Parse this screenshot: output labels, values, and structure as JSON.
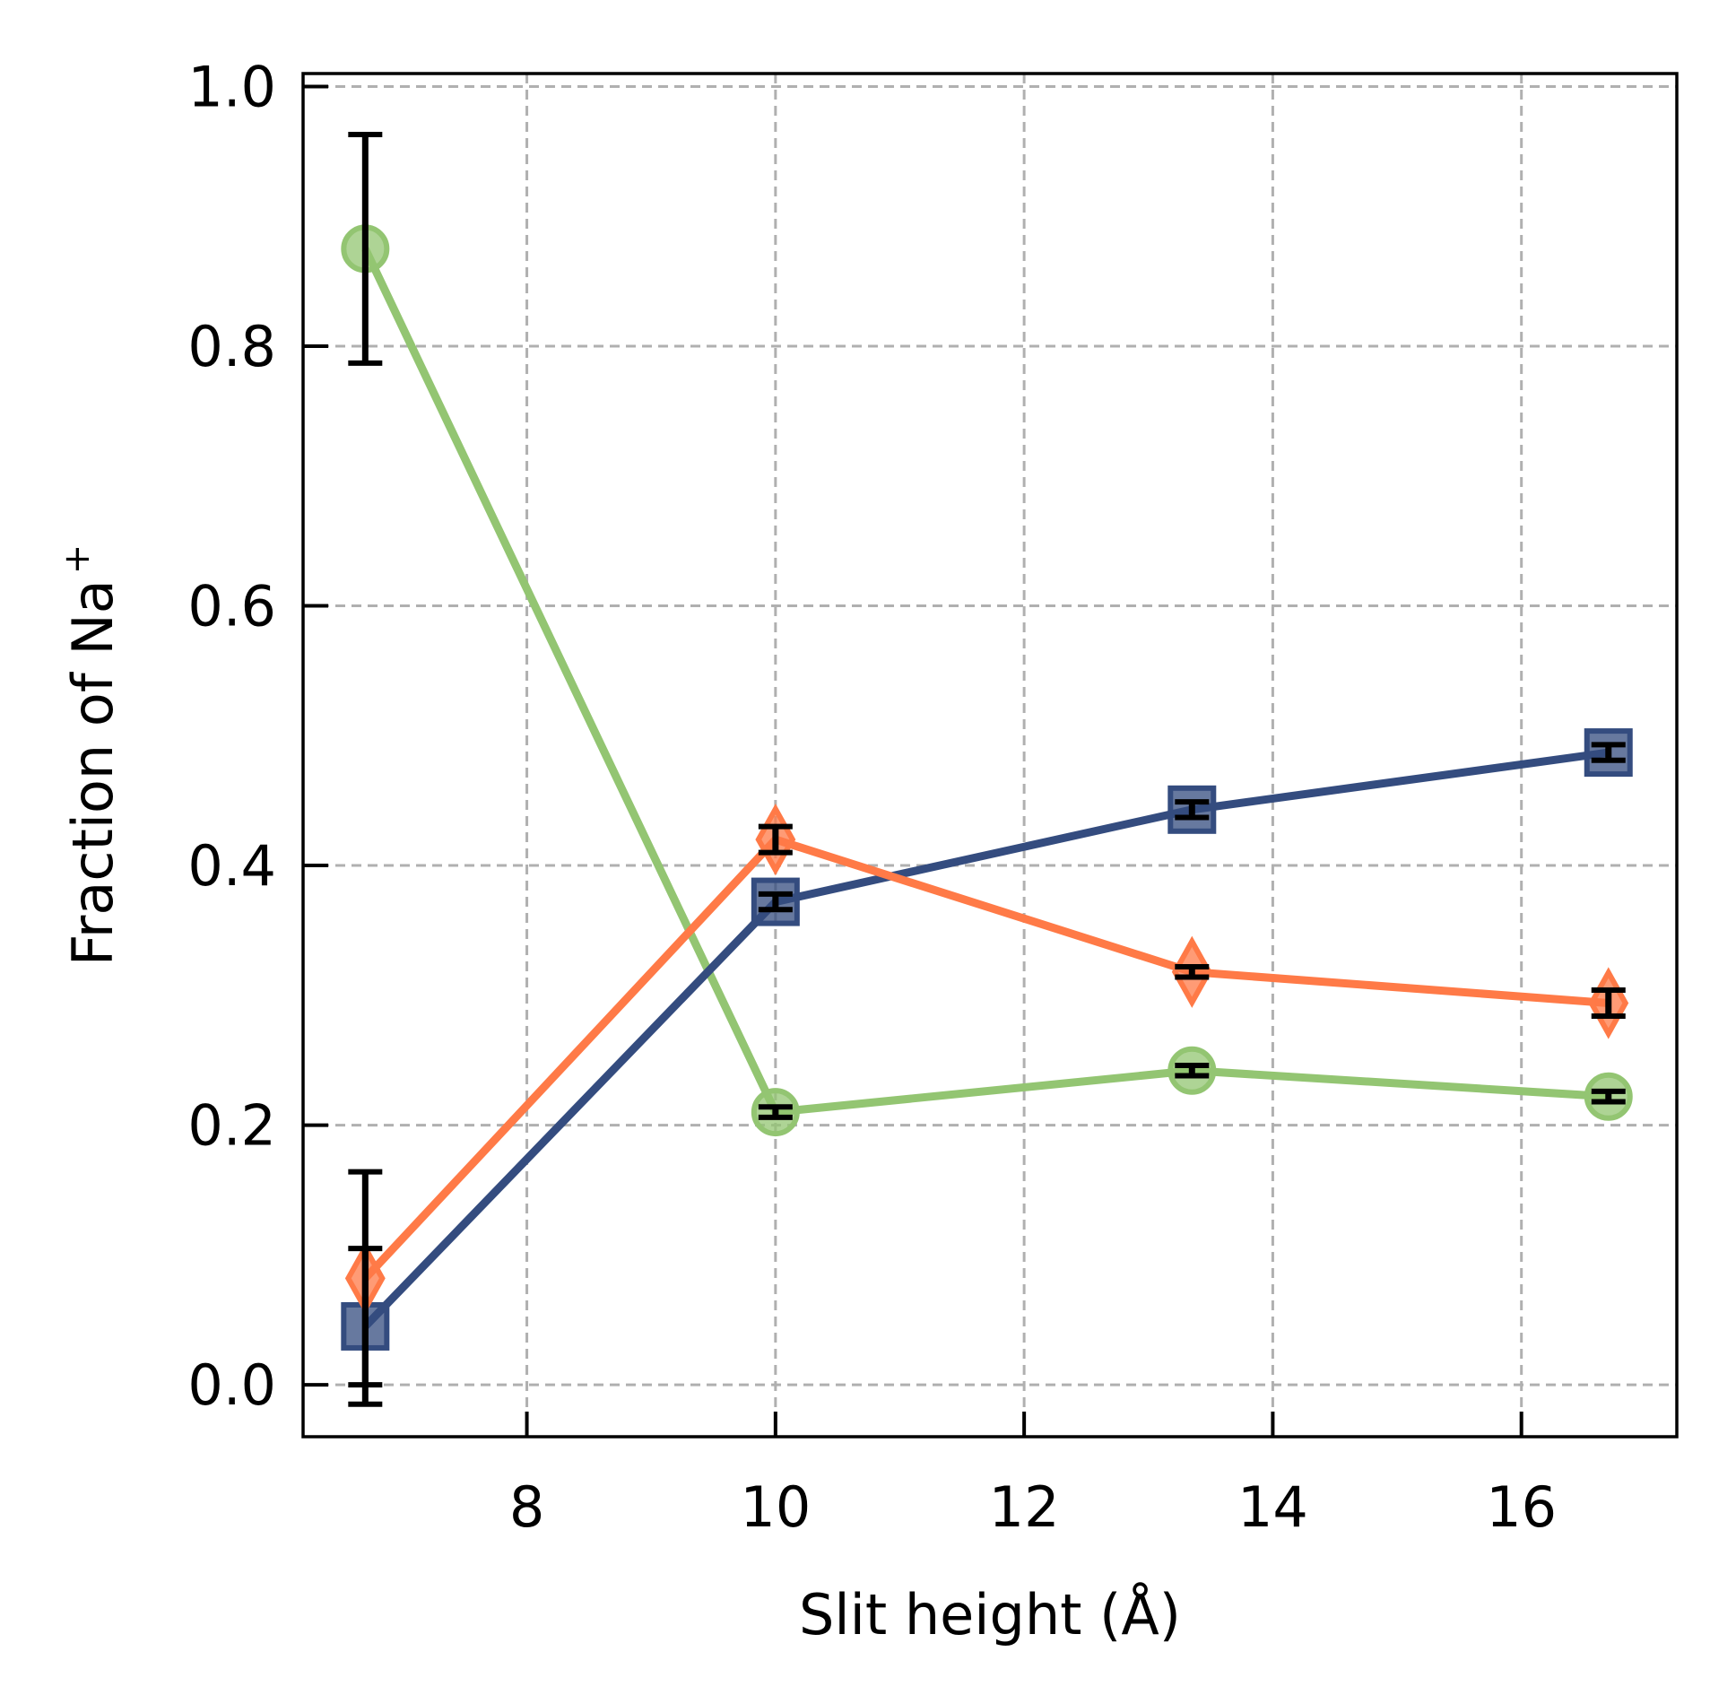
{
  "chart_data": {
    "type": "line",
    "title": "",
    "xlabel": "Slit height (Å)",
    "ylabel": "Fraction of Na",
    "ylabel_sup": "+",
    "xlim": [
      6.2,
      17.25
    ],
    "ylim": [
      -0.04,
      1.01
    ],
    "xticks": [
      8,
      10,
      12,
      14,
      16
    ],
    "yticks": [
      0.0,
      0.2,
      0.4,
      0.6,
      0.8,
      1.0
    ],
    "xtick_labels": [
      "8",
      "10",
      "12",
      "14",
      "16"
    ],
    "ytick_labels": [
      "0.0",
      "0.2",
      "0.4",
      "0.6",
      "0.8",
      "1.0"
    ],
    "grid": true,
    "x": [
      6.7,
      10.0,
      13.35,
      16.7
    ],
    "series": [
      {
        "marker": "circle",
        "color": "#93c572",
        "values": [
          0.875,
          0.21,
          0.242,
          0.222
        ],
        "errors": [
          0.088,
          0.004,
          0.004,
          0.004
        ],
        "error_color": "#000000"
      },
      {
        "marker": "square",
        "color": "#344c7f",
        "values": [
          0.045,
          0.372,
          0.443,
          0.487
        ],
        "errors": [
          0.06,
          0.006,
          0.006,
          0.006
        ],
        "error_color": "#000000"
      },
      {
        "marker": "diamond",
        "color": "#ff7a47",
        "values": [
          0.082,
          0.42,
          0.318,
          0.294
        ],
        "errors": [
          0.082,
          0.01,
          0.004,
          0.01
        ],
        "error_color": "#000000"
      }
    ]
  }
}
